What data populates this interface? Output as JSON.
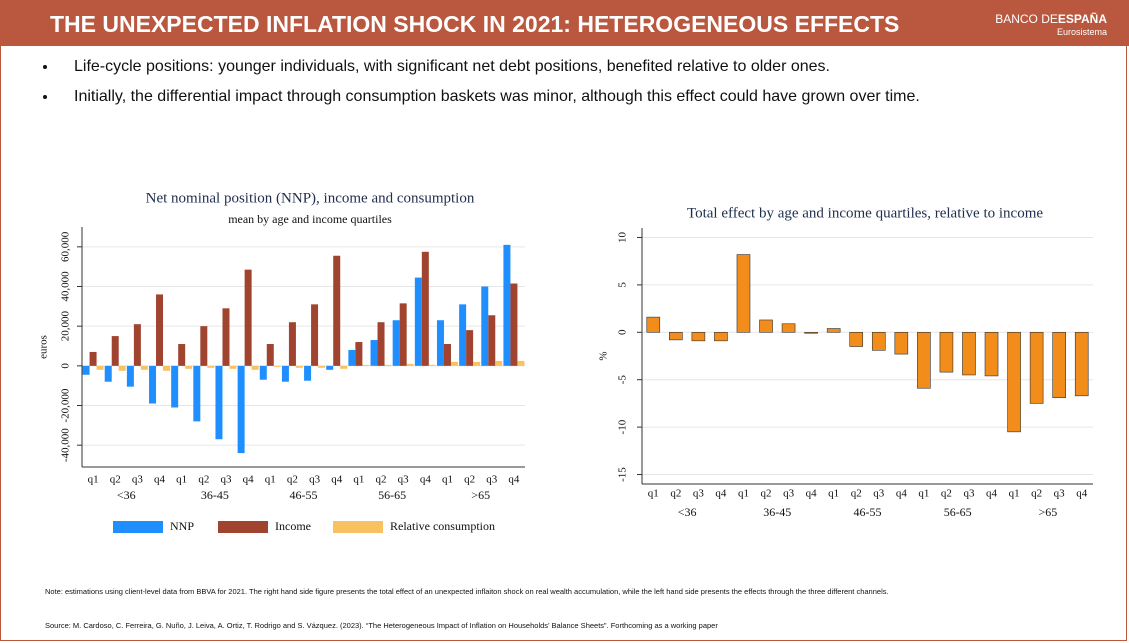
{
  "header": {
    "title": "THE UNEXPECTED INFLATION SHOCK IN 2021: HETEROGENEOUS EFFECTS",
    "logo_main": "BANCO DE",
    "logo_bold": "ESPAÑA",
    "logo_sub": "Eurosistema"
  },
  "bullets": [
    "Life-cycle positions: younger individuals, with significant net debt positions, benefited relative to older ones.",
    "Initially, the differential impact through consumption baskets was minor, although this effect could have grown over time."
  ],
  "note": "Note: estimations using client-level data from BBVA for 2021. The right hand side figure presents the total effect of an unexpected inflaiton shock on real wealth accumulation, while the left hand side presents the effects through the three different channels.",
  "source": "Source: M. Cardoso, C. Ferreira, G. Nuño, J. Leiva, A. Ortiz, T. Rodrigo and S. Vázquez. (2023). “The Heterogeneous Impact of Inflation on Households’ Balance Sheets”. Forthcoming as  a working paper",
  "chart_data": [
    {
      "type": "bar",
      "title": "Net nominal position (NNP), income and consumption",
      "subtitle": "mean by age and income quartiles",
      "y_label": "euros",
      "categories": [
        "q1",
        "q2",
        "q3",
        "q4",
        "q1",
        "q2",
        "q3",
        "q4",
        "q1",
        "q2",
        "q3",
        "q4",
        "q1",
        "q2",
        "q3",
        "q4",
        "q1",
        "q2",
        "q3",
        "q4"
      ],
      "groups": [
        "<36",
        "36-45",
        "46-55",
        "56-65",
        ">65"
      ],
      "series": [
        {
          "name": "NNP",
          "color": "#1f8fff",
          "values": [
            -4500,
            -8000,
            -10500,
            -19000,
            -21000,
            -28000,
            -37000,
            -44000,
            -7000,
            -8000,
            -7500,
            -2000,
            8000,
            13000,
            23000,
            44500,
            23000,
            31000,
            40000,
            61000
          ]
        },
        {
          "name": "Income",
          "color": "#a0432f",
          "values": [
            7000,
            15000,
            21000,
            36000,
            11000,
            20000,
            29000,
            48500,
            11000,
            22000,
            31000,
            55500,
            12000,
            22000,
            31500,
            57500,
            11000,
            18000,
            25500,
            41500
          ]
        },
        {
          "name": "Relative consumption",
          "color": "#f9c261",
          "values": [
            -2000,
            -2500,
            -2000,
            -2500,
            -1500,
            -1000,
            -1500,
            -2000,
            -500,
            -1000,
            -1000,
            -1500,
            500,
            500,
            1000,
            500,
            2000,
            2000,
            2500,
            2500
          ]
        }
      ],
      "ylim": [
        -51000,
        70000
      ],
      "yticks": [
        {
          "value": -40000,
          "label": "-40,000"
        },
        {
          "value": -20000,
          "label": "-20,000"
        },
        0,
        {
          "value": 20000,
          "label": "20,000"
        },
        {
          "value": 40000,
          "label": "40,000"
        },
        {
          "value": 60000,
          "label": "60,000"
        }
      ],
      "grid": true,
      "legend": "bottom"
    },
    {
      "type": "bar",
      "title": "Total effect by age and income quartiles, relative to income",
      "y_label": "%",
      "categories": [
        "q1",
        "q2",
        "q3",
        "q4",
        "q1",
        "q2",
        "q3",
        "q4",
        "q1",
        "q2",
        "q3",
        "q4",
        "q1",
        "q2",
        "q3",
        "q4",
        "q1",
        "q2",
        "q3",
        "q4"
      ],
      "groups": [
        "<36",
        "36-45",
        "46-55",
        "56-65",
        ">65"
      ],
      "values": [
        1.6,
        -0.8,
        -0.9,
        -0.9,
        8.2,
        1.3,
        0.9,
        -0.1,
        0.4,
        -1.5,
        -1.9,
        -2.3,
        -5.9,
        -4.2,
        -4.5,
        -4.6,
        -10.5,
        -7.5,
        -6.9,
        -6.7
      ],
      "color": "#f28c1a",
      "ylim": [
        -16,
        11
      ],
      "yticks": [
        -15,
        -10,
        -5,
        0,
        5,
        10
      ],
      "grid": true
    }
  ]
}
